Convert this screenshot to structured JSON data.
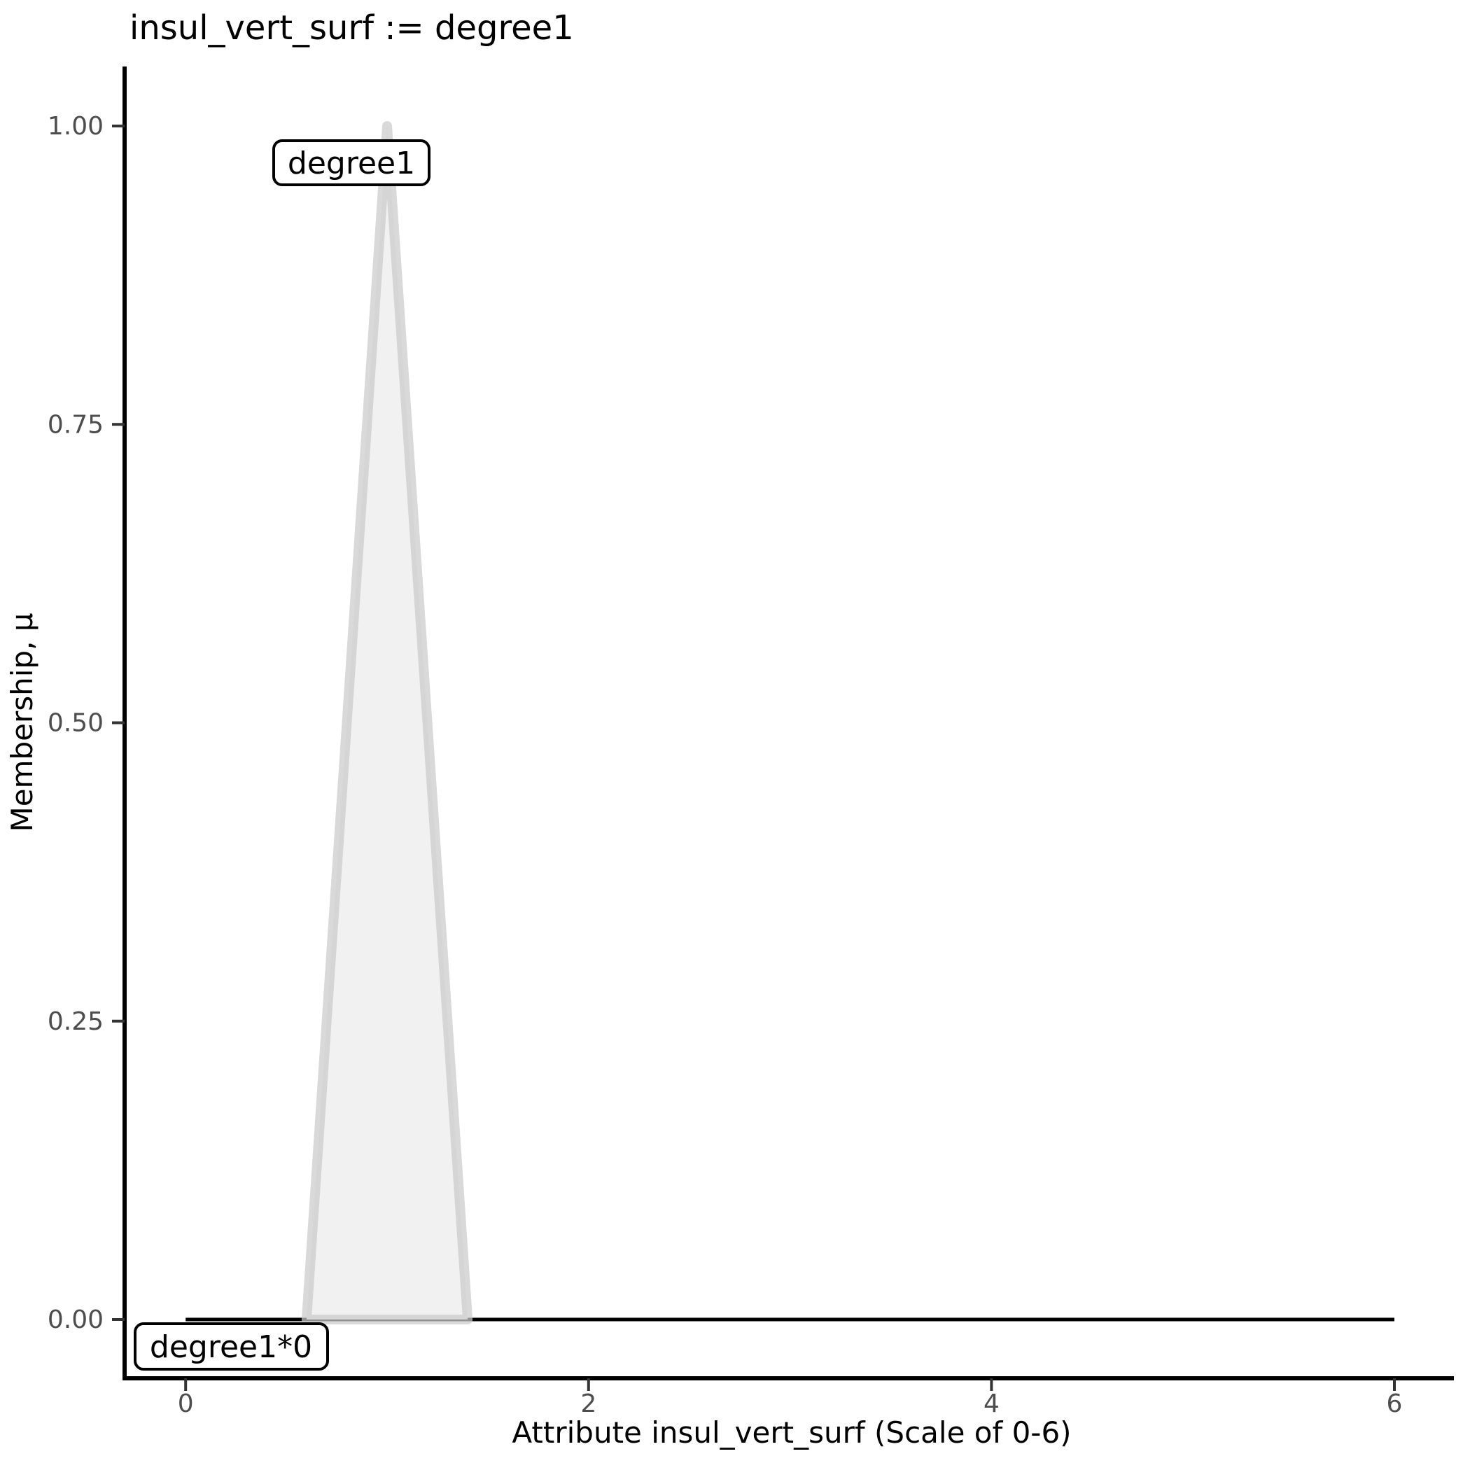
{
  "chart_data": {
    "type": "area",
    "title": "insul_vert_surf := degree1",
    "xlabel": "Attribute insul_vert_surf (Scale of 0-6)",
    "ylabel": "Membership, μ",
    "xlim": [
      0,
      6
    ],
    "ylim": [
      0,
      1
    ],
    "grid": false,
    "legend": false,
    "background_color": "#FFFFFF",
    "axis_line_color": "#000000",
    "tick_mark_color": "#333333",
    "tick_label_color": "#4D4D4D",
    "x_ticks": {
      "values": [
        0,
        2,
        4,
        6
      ],
      "labels": [
        "0",
        "2",
        "4",
        "6"
      ]
    },
    "y_ticks": {
      "values": [
        0,
        0.25,
        0.5,
        0.75,
        1.0
      ],
      "labels": [
        "0.00",
        "0.25",
        "0.50",
        "0.75",
        "1.00"
      ]
    },
    "series": [
      {
        "name": "degree1*0",
        "kind": "line",
        "points": [
          [
            0,
            0
          ],
          [
            6,
            0
          ]
        ],
        "stroke": "#000000",
        "stroke_width": 5
      },
      {
        "name": "degree1",
        "kind": "area",
        "points": [
          [
            0.6,
            0
          ],
          [
            1.0,
            1.0
          ],
          [
            1.4,
            0
          ]
        ],
        "fill": "#F1F1F1",
        "stroke": "rgba(203,203,203,0.72)",
        "stroke_width": 14
      }
    ],
    "annotations": [
      {
        "text": "degree1"
      },
      {
        "text": "degree1*0"
      }
    ]
  }
}
